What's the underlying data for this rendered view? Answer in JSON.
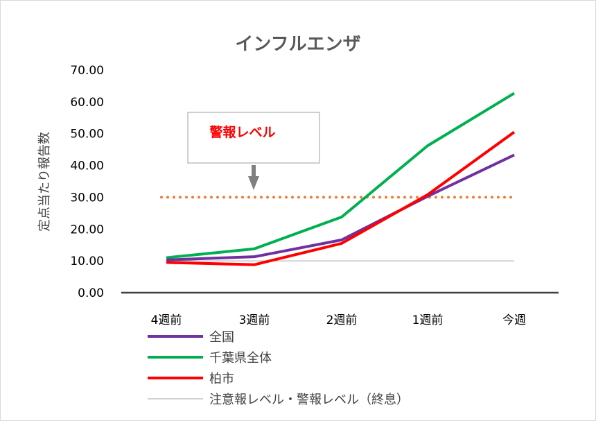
{
  "chart_data": {
    "type": "line",
    "title": "インフルエンザ",
    "ylabel": "定点当たり報告数",
    "xlabel": "",
    "categories": [
      "4週前",
      "3週前",
      "2週前",
      "1週前",
      "今週"
    ],
    "ylim": [
      0,
      70
    ],
    "yticks": [
      "0.00",
      "10.00",
      "20.00",
      "30.00",
      "40.00",
      "50.00",
      "60.00",
      "70.00"
    ],
    "grid": false,
    "legend_placement": "bottom",
    "series": [
      {
        "name": "全国",
        "color": "#7030a0",
        "values": [
          10.3,
          11.3,
          16.6,
          30.3,
          43.3
        ]
      },
      {
        "name": "千葉県全体",
        "color": "#00b050",
        "values": [
          11.0,
          13.8,
          23.8,
          46.2,
          62.7
        ]
      },
      {
        "name": "柏市",
        "color": "#ff0000",
        "values": [
          9.5,
          8.8,
          15.5,
          30.8,
          50.5
        ]
      },
      {
        "name": "注意報レベル・警報レベル（終息）",
        "color": "#a6a6a6",
        "values": [
          10,
          10,
          10,
          10,
          10
        ]
      }
    ],
    "reference_line": {
      "value": 30,
      "color": "#ed7d31",
      "style": "dotted"
    },
    "annotation": {
      "text": "警報レベル",
      "color": "#ff0000"
    }
  }
}
